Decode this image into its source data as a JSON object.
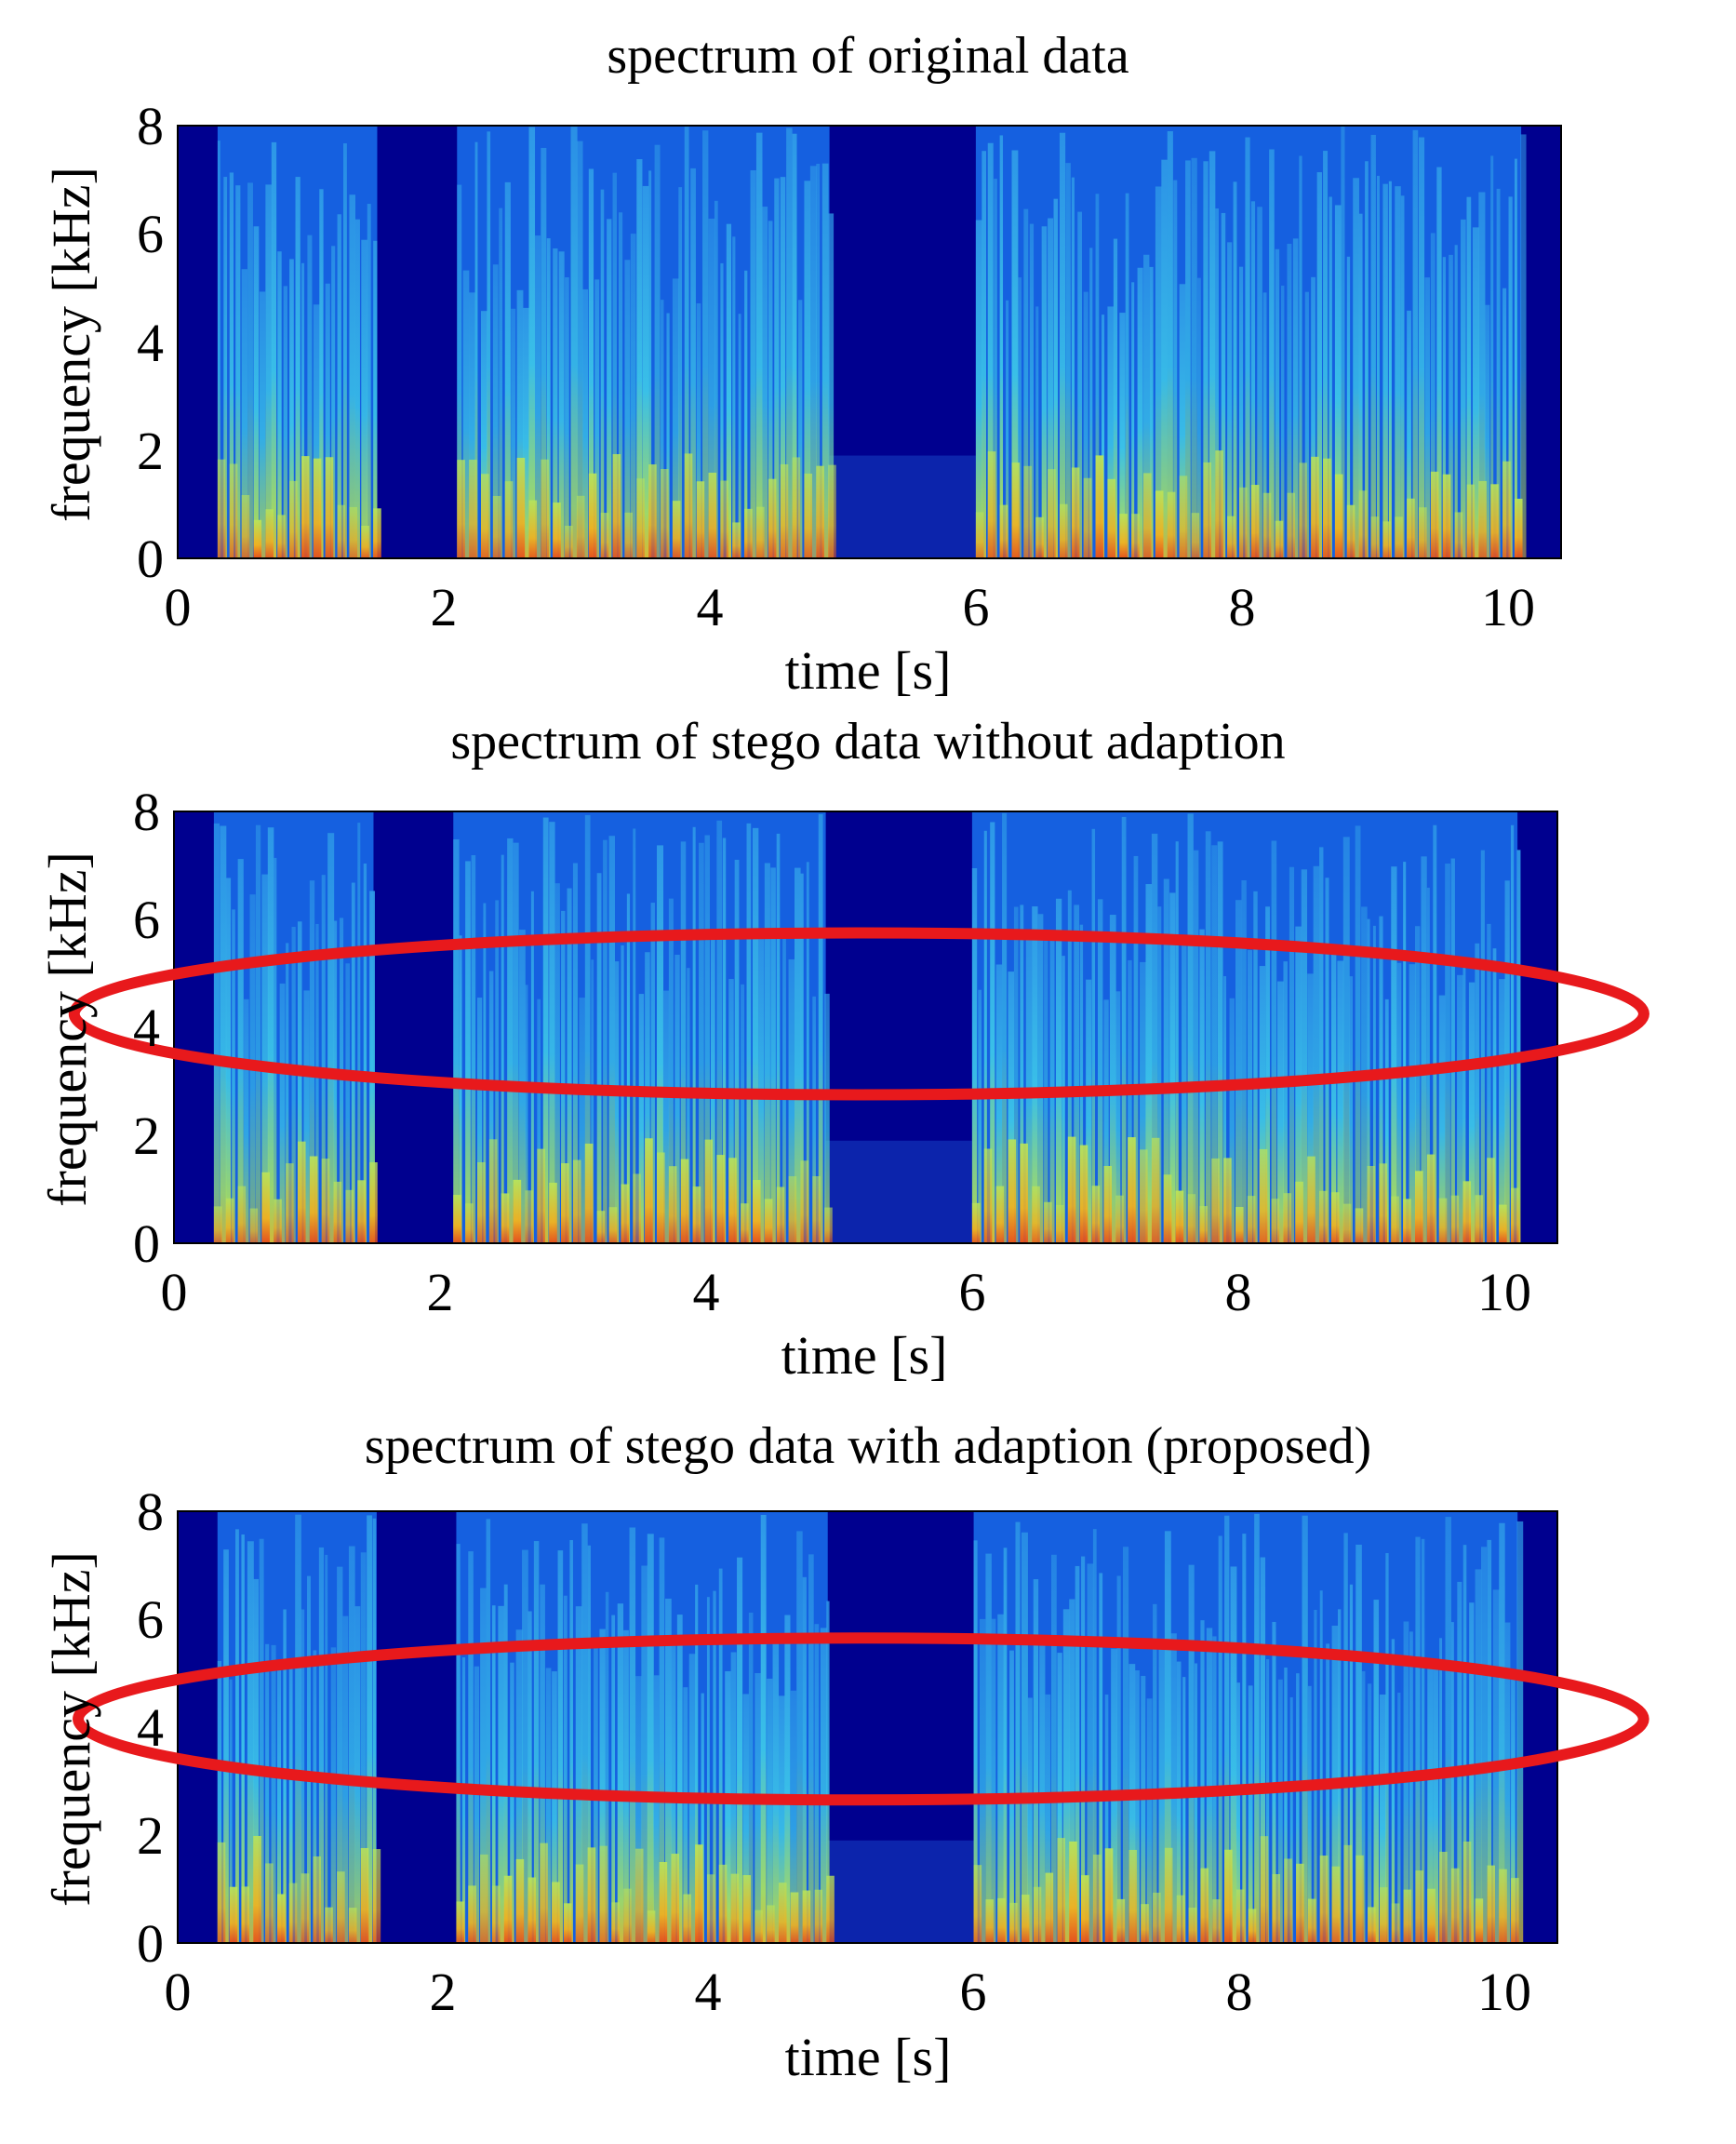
{
  "chart_data": [
    {
      "type": "heatmap",
      "title": "spectrum of original data",
      "xlabel": "time [s]",
      "ylabel": "frequency [kHz]",
      "xlim": [
        0,
        10.4
      ],
      "ylim": [
        0,
        8
      ],
      "xticks": [
        "0",
        "2",
        "4",
        "6",
        "8",
        "10"
      ],
      "yticks": [
        "0",
        "2",
        "4",
        "6",
        "8"
      ],
      "colormap": "jet",
      "speech_segments_s": [
        [
          0.3,
          1.5
        ],
        [
          2.1,
          4.9
        ],
        [
          6.0,
          10.1
        ]
      ],
      "highlight_ellipse": null
    },
    {
      "type": "heatmap",
      "title": "spectrum of stego data without adaption",
      "xlabel": "time [s]",
      "ylabel": "frequency [kHz]",
      "xlim": [
        0,
        10.4
      ],
      "ylim": [
        0,
        8
      ],
      "xticks": [
        "0",
        "2",
        "4",
        "6",
        "8",
        "10"
      ],
      "yticks": [
        "0",
        "2",
        "4",
        "6",
        "8"
      ],
      "colormap": "jet",
      "speech_segments_s": [
        [
          0.3,
          1.5
        ],
        [
          2.1,
          4.9
        ],
        [
          6.0,
          10.1
        ]
      ],
      "highlight_ellipse": {
        "center_s": 5.15,
        "center_khz": 4.25,
        "half_width_s": 5.9,
        "half_height_khz": 1.5,
        "color": "#e8191c"
      }
    },
    {
      "type": "heatmap",
      "title": "spectrum of stego data with adaption (proposed)",
      "xlabel": "time [s]",
      "ylabel": "frequency [kHz]",
      "xlim": [
        0,
        10.4
      ],
      "ylim": [
        0,
        8
      ],
      "xticks": [
        "0",
        "2",
        "4",
        "6",
        "8",
        "10"
      ],
      "yticks": [
        "0",
        "2",
        "4",
        "6",
        "8"
      ],
      "colormap": "jet",
      "speech_segments_s": [
        [
          0.3,
          1.5
        ],
        [
          2.1,
          4.9
        ],
        [
          6.0,
          10.1
        ]
      ],
      "highlight_ellipse": {
        "center_s": 5.15,
        "center_khz": 4.15,
        "half_width_s": 5.9,
        "half_height_khz": 1.5,
        "color": "#e8191c"
      }
    }
  ],
  "colors": {
    "background_dark": "#00008f",
    "ellipse": "#e8191c"
  }
}
